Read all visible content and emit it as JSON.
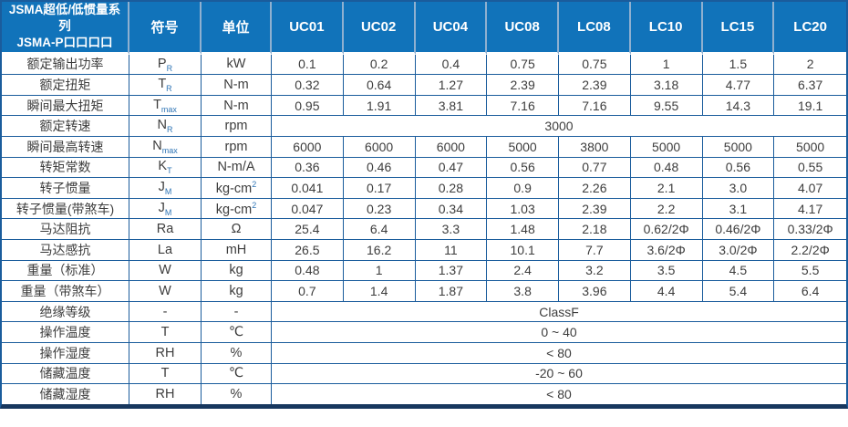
{
  "colors": {
    "header_bg": "#1173BA",
    "header_text": "#FFFFFF",
    "grid_border": "#1A5C9C",
    "header_separator": "#8FB0D0",
    "bottom_bar": "#17375E",
    "body_text": "#3D3D3D",
    "subscript_blue": "#2E74B5"
  },
  "table": {
    "title_line1": "JSMA超低/低惯量系列",
    "title_line2": "JSMA-P口口口口",
    "col_symbol": "符号",
    "col_unit": "单位",
    "models": [
      "UC01",
      "UC02",
      "UC04",
      "UC08",
      "LC08",
      "LC10",
      "LC15",
      "LC20"
    ],
    "rows": [
      {
        "label": "额定输出功率",
        "sym": "P",
        "sub": "R",
        "unit": "kW",
        "values": [
          "0.1",
          "0.2",
          "0.4",
          "0.75",
          "0.75",
          "1",
          "1.5",
          "2"
        ]
      },
      {
        "label": "额定扭矩",
        "sym": "T",
        "sub": "R",
        "unit": "N-m",
        "values": [
          "0.32",
          "0.64",
          "1.27",
          "2.39",
          "2.39",
          "3.18",
          "4.77",
          "6.37"
        ]
      },
      {
        "label": "瞬间最大扭矩",
        "sym": "T",
        "sub": "max",
        "unit": "N-m",
        "values": [
          "0.95",
          "1.91",
          "3.81",
          "7.16",
          "7.16",
          "9.55",
          "14.3",
          "19.1"
        ]
      },
      {
        "label": "额定转速",
        "sym": "N",
        "sub": "R",
        "unit": "rpm",
        "merged": "3000"
      },
      {
        "label": "瞬间最高转速",
        "sym": "N",
        "sub": "max",
        "unit": "rpm",
        "values": [
          "6000",
          "6000",
          "6000",
          "5000",
          "3800",
          "5000",
          "5000",
          "5000"
        ]
      },
      {
        "label": "转矩常数",
        "sym": "K",
        "sub": "T",
        "unit": "N-m/A",
        "values": [
          "0.36",
          "0.46",
          "0.47",
          "0.56",
          "0.77",
          "0.48",
          "0.56",
          "0.55"
        ]
      },
      {
        "label": "转子惯量",
        "sym": "J",
        "sub": "M",
        "unit": "kg-cm",
        "unit_sup": "2",
        "values": [
          "0.041",
          "0.17",
          "0.28",
          "0.9",
          "2.26",
          "2.1",
          "3.0",
          "4.07"
        ]
      },
      {
        "label": "转子惯量(带煞车)",
        "sym": "J",
        "sub": "M",
        "unit": "kg-cm",
        "unit_sup": "2",
        "values": [
          "0.047",
          "0.23",
          "0.34",
          "1.03",
          "2.39",
          "2.2",
          "3.1",
          "4.17"
        ]
      },
      {
        "label": "马达阻抗",
        "sym": "Ra",
        "unit": "Ω",
        "values": [
          "25.4",
          "6.4",
          "3.3",
          "1.48",
          "2.18",
          "0.62/2Φ",
          "0.46/2Φ",
          "0.33/2Φ"
        ]
      },
      {
        "label": "马达感抗",
        "sym": "La",
        "unit": "mH",
        "values": [
          "26.5",
          "16.2",
          "11",
          "10.1",
          "7.7",
          "3.6/2Φ",
          "3.0/2Φ",
          "2.2/2Φ"
        ]
      },
      {
        "label": "重量（标准）",
        "sym": "W",
        "unit": "kg",
        "values": [
          "0.48",
          "1",
          "1.37",
          "2.4",
          "3.2",
          "3.5",
          "4.5",
          "5.5"
        ]
      },
      {
        "label": "重量（带煞车）",
        "sym": "W",
        "unit": "kg",
        "values": [
          "0.7",
          "1.4",
          "1.87",
          "3.8",
          "3.96",
          "4.4",
          "5.4",
          "6.4"
        ]
      },
      {
        "label": "绝缘等级",
        "sym": "-",
        "unit": "-",
        "merged": "ClassF"
      },
      {
        "label": "操作温度",
        "sym": "T",
        "unit": "℃",
        "merged": "0 ~ 40"
      },
      {
        "label": "操作湿度",
        "sym": "RH",
        "unit": "%",
        "merged": "< 80"
      },
      {
        "label": "储藏温度",
        "sym": "T",
        "unit": "℃",
        "merged": "-20 ~ 60"
      },
      {
        "label": "储藏湿度",
        "sym": "RH",
        "unit": "%",
        "merged": "< 80"
      }
    ]
  }
}
